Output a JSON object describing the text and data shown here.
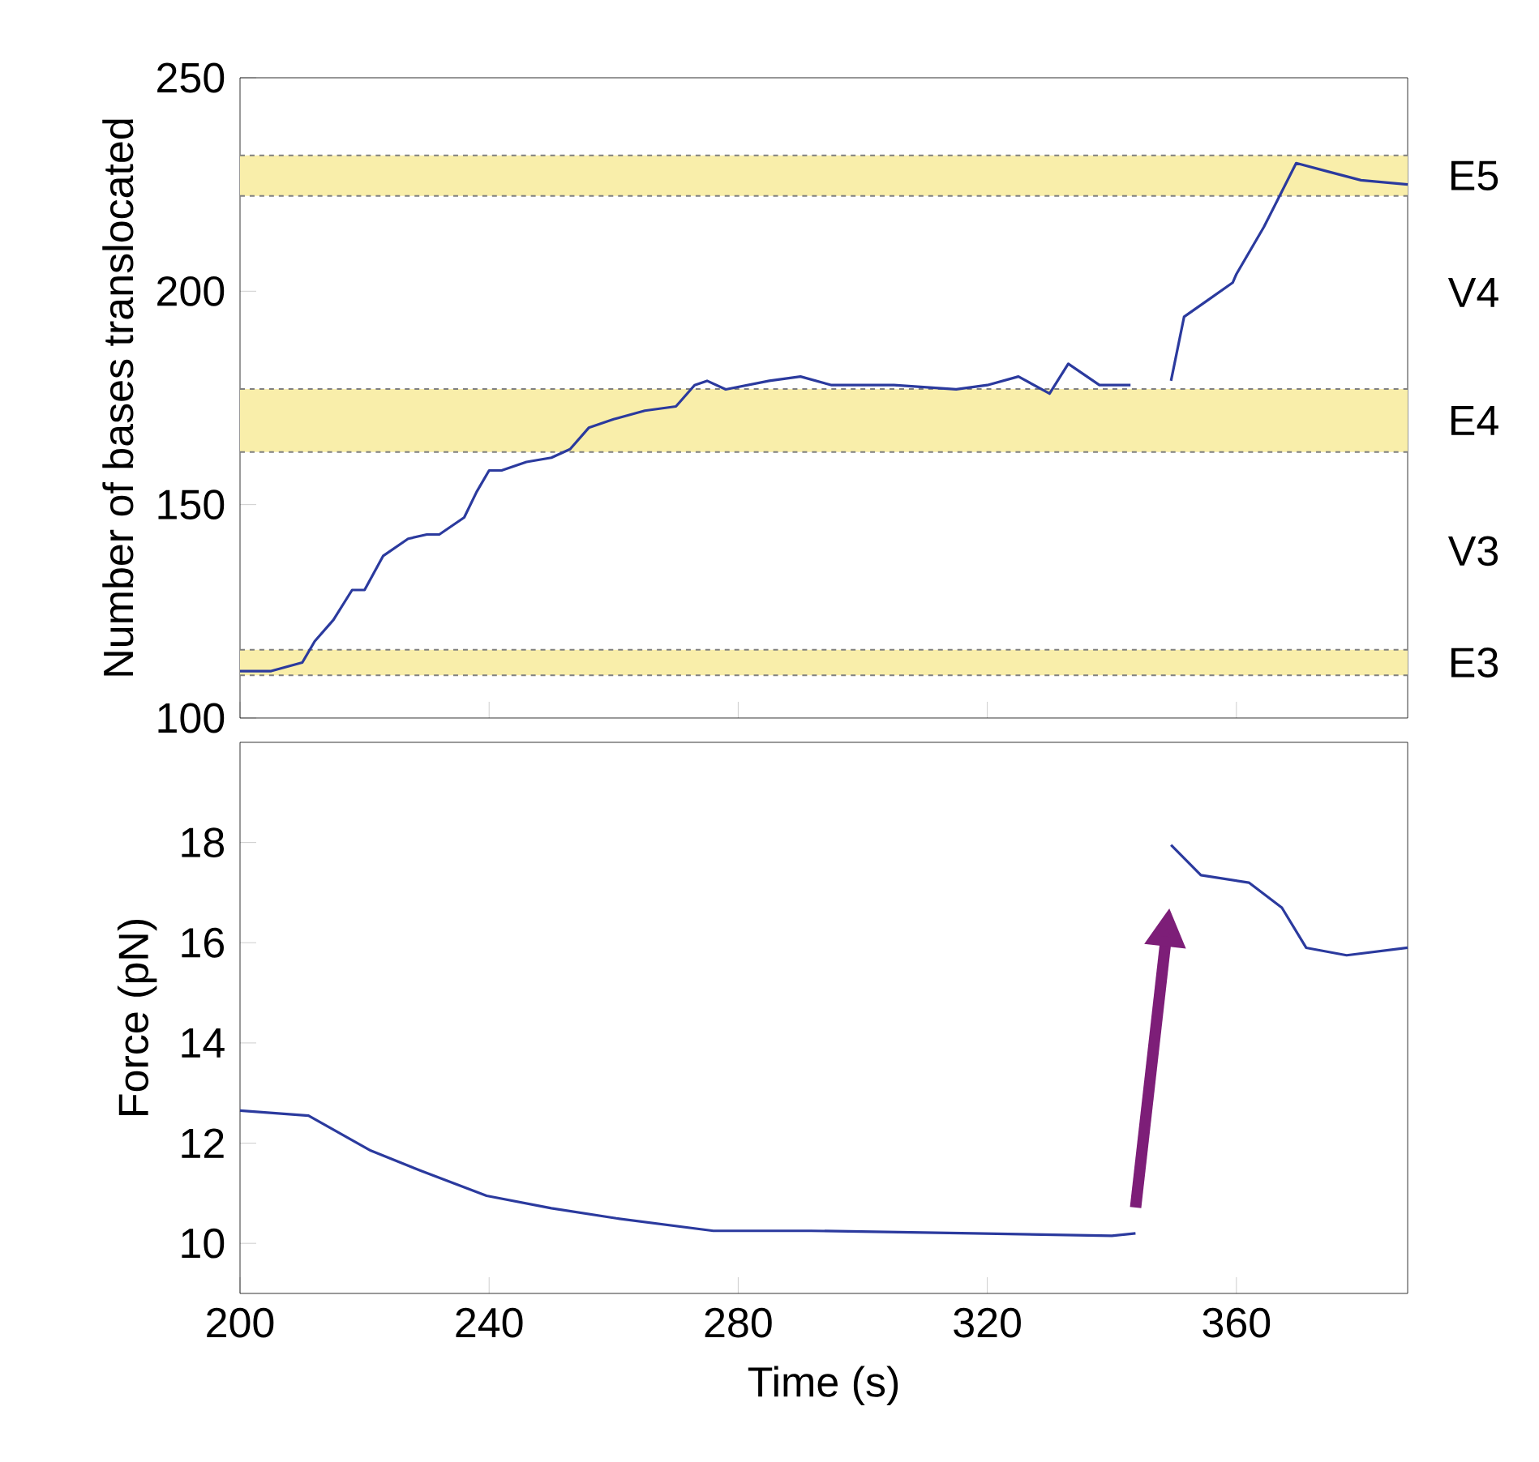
{
  "chart_data": [
    {
      "type": "line",
      "ylabel": "Number of bases translocated",
      "xlim": [
        200,
        387.5
      ],
      "ylim": [
        100,
        250
      ],
      "xticks": [
        200,
        240,
        280,
        320,
        360
      ],
      "yticks": [
        100,
        150,
        200,
        250
      ],
      "tick_labels": "y",
      "x": [
        200,
        205,
        210,
        212,
        215,
        218,
        220,
        223,
        227,
        230,
        232,
        236,
        238,
        240,
        242,
        246,
        250,
        253,
        256,
        260,
        265,
        270,
        273,
        275,
        278,
        285,
        290,
        295,
        305,
        315,
        320,
        325,
        330,
        333,
        338,
        343,
        346,
        349.5,
        351.6,
        355.5,
        359.4,
        360,
        364.4,
        369.6,
        374.8,
        380,
        387.5
      ],
      "series": [
        {
          "color": "#2b3a9e",
          "values": [
            111,
            111,
            113,
            118,
            123,
            130,
            130,
            138,
            142,
            143,
            143,
            147,
            153,
            158,
            158,
            160,
            161,
            163,
            168,
            170,
            172,
            173,
            178,
            179,
            177,
            179,
            180,
            178,
            178,
            177,
            178,
            180,
            176,
            183,
            178,
            178,
            null,
            179,
            194,
            198,
            202,
            204,
            215,
            230,
            228,
            226,
            225
          ]
        }
      ],
      "bands": [
        {
          "axis": "y",
          "from": 222.3,
          "to": 231.8,
          "label": "E5",
          "color": "#f9eeaa"
        },
        {
          "axis": "y",
          "from": 162.3,
          "to": 177.1,
          "label": "E4",
          "color": "#f9eeaa"
        },
        {
          "axis": "y",
          "from": 110,
          "to": 116,
          "label": "E3",
          "color": "#f9eeaa"
        }
      ],
      "annotations": [
        "V4",
        "V3"
      ]
    },
    {
      "type": "line",
      "xlabel": "Time (s)",
      "ylabel": "Force (pN)",
      "xlim": [
        200,
        387.5
      ],
      "ylim": [
        9,
        20
      ],
      "xticks": [
        200,
        240,
        280,
        320,
        360
      ],
      "yticks": [
        10,
        12,
        14,
        16,
        18
      ],
      "x": [
        200,
        211,
        216,
        221,
        229,
        239.6,
        250,
        260.4,
        276,
        291.7,
        317.8,
        340,
        343.8,
        346,
        349.5,
        354.3,
        362,
        367.3,
        371.2,
        377.7,
        387.5
      ],
      "series": [
        {
          "color": "#2b3a9e",
          "values": [
            12.65,
            12.55,
            12.2,
            11.85,
            11.45,
            10.95,
            10.7,
            10.5,
            10.25,
            10.25,
            10.2,
            10.15,
            10.2,
            null,
            17.95,
            17.35,
            17.2,
            16.7,
            15.9,
            15.75,
            15.9
          ]
        }
      ]
    }
  ]
}
